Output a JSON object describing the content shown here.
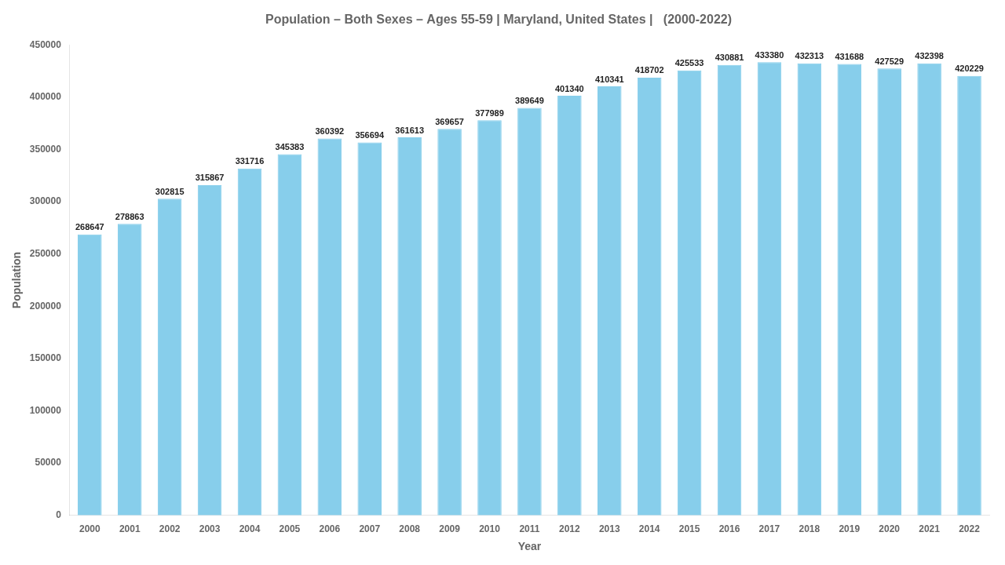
{
  "chart_data": {
    "type": "bar",
    "title": "Population – Both Sexes – Ages 55-59 | Maryland, United States |   (2000-2022)",
    "x_label": "Year",
    "y_label": "Population",
    "categories": [
      "2000",
      "2001",
      "2002",
      "2003",
      "2004",
      "2005",
      "2006",
      "2007",
      "2008",
      "2009",
      "2010",
      "2011",
      "2012",
      "2013",
      "2014",
      "2015",
      "2016",
      "2017",
      "2018",
      "2019",
      "2020",
      "2021",
      "2022"
    ],
    "values": [
      268647,
      278863,
      302815,
      315867,
      331716,
      345383,
      360392,
      356694,
      361613,
      369657,
      377989,
      389649,
      401340,
      410341,
      418702,
      425533,
      430881,
      433380,
      432313,
      431688,
      427529,
      432398,
      420229
    ],
    "color": "#87CEEB",
    "ylim": [
      0,
      450000
    ],
    "yticks": [
      0,
      50000,
      100000,
      150000,
      200000,
      250000,
      300000,
      350000,
      400000,
      450000
    ],
    "grid": false,
    "data_labels": true
  }
}
